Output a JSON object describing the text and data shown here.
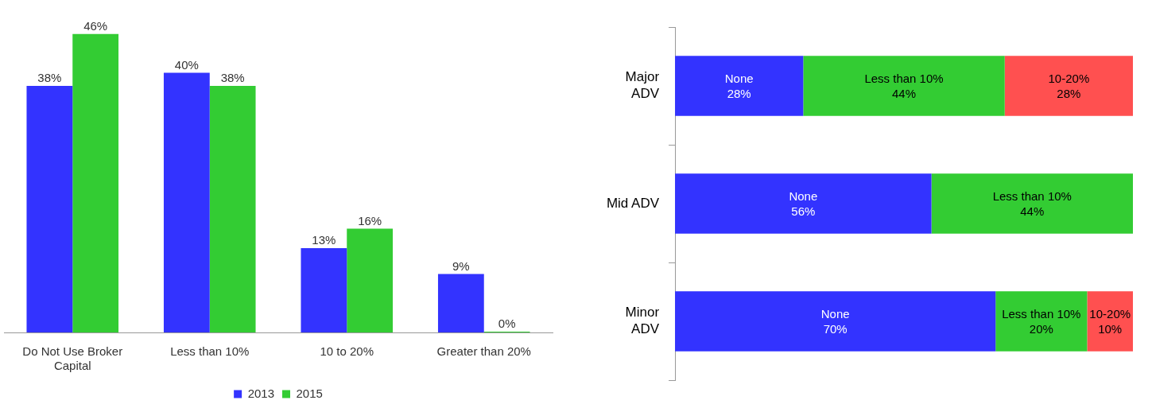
{
  "chart_data": [
    {
      "type": "bar",
      "categories": [
        "Do Not Use Broker Capital",
        "Less than 10%",
        "10 to 20%",
        "Greater than 20%"
      ],
      "tick_labels": "x",
      "grid": false,
      "legend": "bottom",
      "series": [
        {
          "name": "2013",
          "color": "#3333ff",
          "values": [
            38,
            40,
            13,
            9
          ],
          "value_labels": [
            "38%",
            "40%",
            "13%",
            "9%"
          ]
        },
        {
          "name": "2015",
          "color": "#33cc33",
          "values": [
            46,
            38,
            16,
            0
          ],
          "value_labels": [
            "46%",
            "38%",
            "16%",
            "0%"
          ]
        }
      ]
    },
    {
      "type": "bar",
      "orientation": "horizontal",
      "stacked": true,
      "categories": [
        "Major ADV",
        "Mid ADV",
        "Minor ADV"
      ],
      "xlim": [
        0,
        100
      ],
      "tick_labels": "y",
      "grid": false,
      "legend": false,
      "series": [
        {
          "name": "None",
          "color": "#3333ff",
          "values": [
            28,
            56,
            70
          ],
          "value_labels": [
            "28%",
            "56%",
            "70%"
          ]
        },
        {
          "name": "Less than 10%",
          "color": "#33cc33",
          "values": [
            44,
            44,
            20
          ],
          "value_labels": [
            "44%",
            "44%",
            "20%"
          ]
        },
        {
          "name": "10-20%",
          "color": "#ff5050",
          "values": [
            28,
            null,
            10
          ],
          "value_labels": [
            "28%",
            null,
            "10%"
          ]
        }
      ]
    }
  ]
}
